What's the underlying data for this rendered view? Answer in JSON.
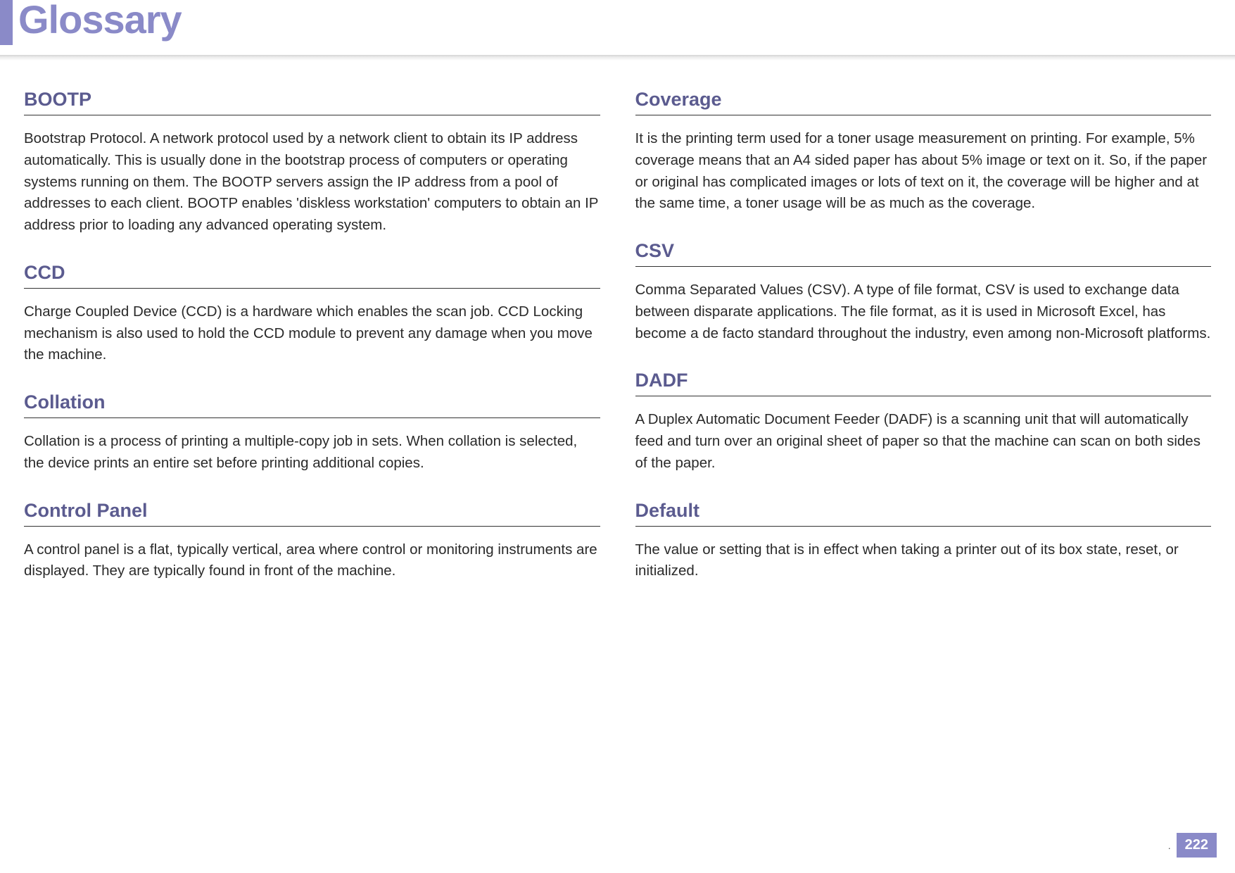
{
  "header": {
    "title": "Glossary",
    "title_color": "#8a8ac8",
    "title_fontsize": 56,
    "accent_color": "#8a8ac8"
  },
  "colors": {
    "term_color": "#5b5b8f",
    "term_underline": "#333333",
    "body_text": "#2a2a2a",
    "background": "#ffffff",
    "page_badge_bg": "#8a8ac8",
    "page_badge_text": "#ffffff"
  },
  "typography": {
    "term_fontsize": 27,
    "term_weight": 700,
    "body_fontsize": 20.5,
    "body_lineheight": 1.5
  },
  "columns": {
    "left": [
      {
        "term": "BOOTP",
        "definition": "Bootstrap Protocol. A network protocol used by a network client to obtain its IP address automatically. This is usually done in the bootstrap process of computers or operating systems running on them. The BOOTP servers assign the IP address from a pool of addresses to each client. BOOTP enables 'diskless workstation' computers to obtain an IP address prior to loading any advanced operating system."
      },
      {
        "term": "CCD",
        "definition": "Charge Coupled Device (CCD) is a hardware which enables the scan job. CCD Locking mechanism is also used to hold the CCD module to prevent any damage when you move the machine."
      },
      {
        "term": "Collation",
        "definition": "Collation is a process of printing a multiple-copy job in sets. When collation is selected, the device prints an entire set before printing additional copies."
      },
      {
        "term": "Control Panel",
        "definition": "A control panel is a flat, typically vertical, area where control or monitoring instruments are displayed. They are typically found in front of the machine."
      }
    ],
    "right": [
      {
        "term": "Coverage",
        "definition": "It is the printing term used for a toner usage measurement on printing. For example, 5% coverage means that an A4 sided paper has about 5% image or text on it. So, if the paper or original has complicated images or lots of text on it, the coverage will be higher and at the same time, a toner usage will be as much as the coverage."
      },
      {
        "term": "CSV",
        "definition": "Comma Separated Values (CSV). A type of file format, CSV is used to exchange data between disparate applications. The file format, as it is used in Microsoft Excel, has become a de facto standard throughout the industry, even among non-Microsoft platforms."
      },
      {
        "term": "DADF",
        "definition": "A Duplex Automatic Document Feeder (DADF) is a scanning unit that will automatically feed and turn over an original sheet of paper so that the machine can scan on both sides of the paper."
      },
      {
        "term": "Default",
        "definition": "The value or setting that is in effect when taking a printer out of its box state, reset, or initialized."
      }
    ]
  },
  "footer": {
    "dot": ".",
    "page_number": "222"
  }
}
